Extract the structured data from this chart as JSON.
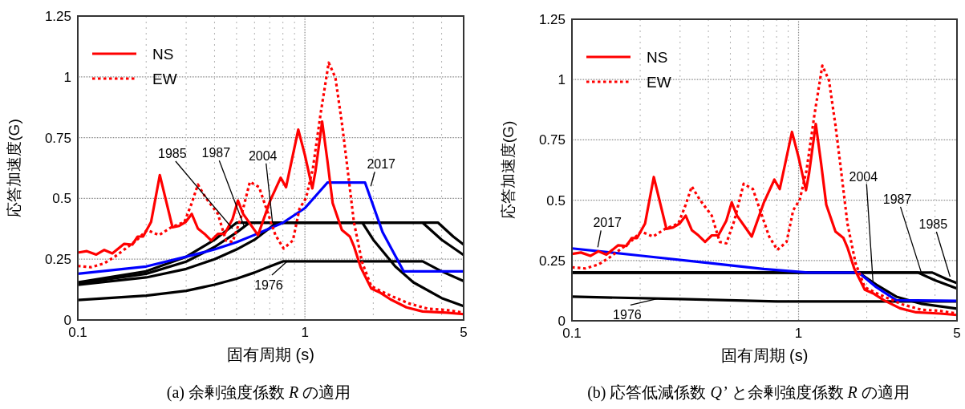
{
  "chart_data": [
    {
      "type": "line",
      "title": "(a)  余剰強度係数 *R* の適用",
      "xlabel": "固有周期 (s)",
      "ylabel": "応答加速度(G)",
      "log": "x",
      "xlim": [
        0.1,
        5
      ],
      "ylim": [
        0,
        1.25
      ],
      "xticks": [
        0.1,
        1,
        5
      ],
      "yticks": [
        0,
        0.25,
        0.5,
        0.75,
        1,
        1.25
      ],
      "grid": true,
      "legend": "top left",
      "series": [
        {
          "name": "NS",
          "color": "#ff0000",
          "line_style": "solid",
          "x": [
            0.1,
            0.1096,
            0.1206,
            0.1308,
            0.1419,
            0.16,
            0.1738,
            0.1835,
            0.1938,
            0.2102,
            0.2297,
            0.2612,
            0.2794,
            0.2986,
            0.3176,
            0.3379,
            0.3616,
            0.3868,
            0.414,
            0.4428,
            0.48,
            0.507,
            0.535,
            0.6215,
            0.7035,
            0.782,
            0.826,
            0.935,
            1.0,
            1.078,
            1.113,
            1.191,
            1.256,
            1.325,
            1.455,
            1.578,
            1.643,
            1.76,
            1.96,
            2.15,
            2.38,
            2.8,
            3.3,
            4.21,
            5
          ],
          "values": [
            0.277,
            0.283,
            0.269,
            0.288,
            0.274,
            0.313,
            0.31,
            0.343,
            0.343,
            0.403,
            0.596,
            0.381,
            0.387,
            0.403,
            0.436,
            0.376,
            0.354,
            0.327,
            0.354,
            0.354,
            0.415,
            0.491,
            0.436,
            0.349,
            0.491,
            0.585,
            0.546,
            0.783,
            0.678,
            0.541,
            0.612,
            0.816,
            0.656,
            0.481,
            0.37,
            0.343,
            0.304,
            0.217,
            0.129,
            0.112,
            0.085,
            0.052,
            0.035,
            0.03,
            0.024
          ]
        },
        {
          "name": "EW",
          "color": "#ff0000",
          "line_style": "dotted",
          "x": [
            0.1,
            0.1142,
            0.1308,
            0.1458,
            0.1625,
            0.181,
            0.2019,
            0.2279,
            0.2577,
            0.2948,
            0.3176,
            0.3379,
            0.3664,
            0.414,
            0.4488,
            0.48,
            0.5206,
            0.5724,
            0.6287,
            0.6636,
            0.7417,
            0.806,
            0.8853,
            0.947,
            1.012,
            1.084,
            1.175,
            1.273,
            1.362,
            1.455,
            1.535,
            1.643,
            1.785,
            1.96,
            2.18,
            2.44,
            2.87,
            3.48,
            4.21,
            5
          ],
          "values": [
            0.222,
            0.217,
            0.233,
            0.261,
            0.294,
            0.327,
            0.37,
            0.349,
            0.381,
            0.403,
            0.481,
            0.557,
            0.502,
            0.436,
            0.327,
            0.321,
            0.415,
            0.568,
            0.546,
            0.481,
            0.349,
            0.294,
            0.327,
            0.458,
            0.502,
            0.623,
            0.854,
            1.058,
            0.997,
            0.81,
            0.634,
            0.403,
            0.238,
            0.139,
            0.117,
            0.096,
            0.068,
            0.046,
            0.041,
            0.03
          ]
        },
        {
          "color": "#000000",
          "line_style": "solid",
          "x": [
            0.1,
            0.2,
            0.3,
            0.4,
            0.5,
            0.6,
            0.7,
            0.8,
            3.3,
            4,
            5
          ],
          "values": [
            0.082,
            0.1,
            0.12,
            0.145,
            0.17,
            0.195,
            0.22,
            0.241,
            0.241,
            0.2,
            0.16
          ]
        },
        {
          "color": "#000000",
          "line_style": "solid",
          "x": [
            0.1,
            0.2,
            0.3,
            0.4,
            0.5,
            3.86,
            4.5,
            5
          ],
          "values": [
            0.155,
            0.2,
            0.26,
            0.33,
            0.4,
            0.4,
            0.343,
            0.31
          ]
        },
        {
          "color": "#000000",
          "line_style": "solid",
          "x": [
            0.1,
            0.2,
            0.3,
            0.4,
            0.5,
            0.57,
            3.3,
            4,
            5
          ],
          "values": [
            0.15,
            0.19,
            0.24,
            0.3,
            0.36,
            0.4,
            0.4,
            0.33,
            0.267
          ]
        },
        {
          "color": "#000000",
          "line_style": "solid",
          "x": [
            0.1,
            0.2,
            0.3,
            0.4,
            0.5,
            0.6,
            0.75,
            1.79,
            2,
            2.5,
            3,
            4,
            5
          ],
          "values": [
            0.145,
            0.175,
            0.21,
            0.25,
            0.29,
            0.33,
            0.4,
            0.4,
            0.33,
            0.22,
            0.155,
            0.09,
            0.057
          ]
        },
        {
          "color": "#0000ff",
          "line_style": "solid",
          "x": [
            0.1,
            0.2,
            0.3,
            0.4,
            0.5,
            0.6,
            0.8,
            1,
            1.256,
            1.84,
            2.2,
            2.72,
            5
          ],
          "values": [
            0.19,
            0.22,
            0.26,
            0.29,
            0.32,
            0.35,
            0.4,
            0.46,
            0.565,
            0.565,
            0.36,
            0.2,
            0.2
          ]
        }
      ],
      "annotations": [
        {
          "text": "1985",
          "x": 0.48,
          "y": 0.376
        },
        {
          "text": "1987",
          "x": 0.54,
          "y": 0.385
        },
        {
          "text": "2004",
          "x": 0.72,
          "y": 0.4
        },
        {
          "text": "2017",
          "x": 1.95,
          "y": 0.55
        },
        {
          "text": "1976",
          "x": 0.835,
          "y": 0.241
        }
      ]
    },
    {
      "type": "line",
      "title": "(b)  応答低減係数 *Q’* と余剰強度係数 *R* の適用",
      "xlabel": "固有周期 (s)",
      "ylabel": "応答加速度(G)",
      "log": "x",
      "xlim": [
        0.1,
        5
      ],
      "ylim": [
        0,
        1.25
      ],
      "xticks": [
        0.1,
        1,
        5
      ],
      "yticks": [
        0,
        0.25,
        0.5,
        0.75,
        1,
        1.25
      ],
      "grid": true,
      "legend": "top left",
      "series": [
        {
          "name": "NS",
          "color": "#ff0000",
          "line_style": "solid",
          "x": [
            0.1,
            0.1096,
            0.1206,
            0.1308,
            0.1419,
            0.16,
            0.1738,
            0.1835,
            0.1938,
            0.2102,
            0.2297,
            0.2612,
            0.2794,
            0.2986,
            0.3176,
            0.3379,
            0.3616,
            0.3868,
            0.414,
            0.4428,
            0.48,
            0.507,
            0.535,
            0.6215,
            0.7035,
            0.782,
            0.826,
            0.935,
            1.0,
            1.078,
            1.113,
            1.191,
            1.256,
            1.325,
            1.455,
            1.578,
            1.643,
            1.76,
            1.96,
            2.15,
            2.38,
            2.8,
            3.3,
            4.21,
            5
          ],
          "values": [
            0.277,
            0.283,
            0.269,
            0.288,
            0.274,
            0.313,
            0.31,
            0.343,
            0.343,
            0.403,
            0.596,
            0.381,
            0.387,
            0.403,
            0.436,
            0.376,
            0.354,
            0.327,
            0.354,
            0.354,
            0.415,
            0.491,
            0.436,
            0.349,
            0.491,
            0.585,
            0.546,
            0.783,
            0.678,
            0.541,
            0.612,
            0.816,
            0.656,
            0.481,
            0.37,
            0.343,
            0.304,
            0.217,
            0.129,
            0.112,
            0.085,
            0.052,
            0.035,
            0.03,
            0.024
          ]
        },
        {
          "name": "EW",
          "color": "#ff0000",
          "line_style": "dotted",
          "x": [
            0.1,
            0.1142,
            0.1308,
            0.1458,
            0.1625,
            0.181,
            0.2019,
            0.2279,
            0.2577,
            0.2948,
            0.3176,
            0.3379,
            0.3664,
            0.414,
            0.4488,
            0.48,
            0.5206,
            0.5724,
            0.6287,
            0.6636,
            0.7417,
            0.806,
            0.8853,
            0.947,
            1.012,
            1.084,
            1.175,
            1.273,
            1.362,
            1.455,
            1.535,
            1.643,
            1.785,
            1.96,
            2.18,
            2.44,
            2.87,
            3.48,
            4.21,
            5
          ],
          "values": [
            0.222,
            0.217,
            0.233,
            0.261,
            0.294,
            0.327,
            0.37,
            0.349,
            0.381,
            0.403,
            0.481,
            0.557,
            0.502,
            0.436,
            0.327,
            0.321,
            0.415,
            0.568,
            0.546,
            0.481,
            0.349,
            0.294,
            0.327,
            0.458,
            0.502,
            0.623,
            0.854,
            1.058,
            0.997,
            0.81,
            0.634,
            0.403,
            0.238,
            0.139,
            0.117,
            0.096,
            0.068,
            0.046,
            0.041,
            0.03
          ]
        },
        {
          "color": "#000000",
          "line_style": "solid",
          "x": [
            0.1,
            0.3,
            0.8,
            5
          ],
          "values": [
            0.1,
            0.09,
            0.08,
            0.08
          ]
        },
        {
          "color": "#000000",
          "line_style": "solid",
          "x": [
            0.1,
            3.89,
            4.5,
            5
          ],
          "values": [
            0.2,
            0.2,
            0.173,
            0.156
          ]
        },
        {
          "color": "#000000",
          "line_style": "solid",
          "x": [
            0.1,
            3.36,
            4,
            5
          ],
          "values": [
            0.2,
            0.2,
            0.168,
            0.134
          ]
        },
        {
          "color": "#000000",
          "line_style": "solid",
          "x": [
            0.1,
            1.84,
            2.2,
            2.7,
            3.5,
            5
          ],
          "values": [
            0.2,
            0.2,
            0.15,
            0.1,
            0.07,
            0.05
          ]
        },
        {
          "color": "#0000ff",
          "line_style": "solid",
          "x": [
            0.1,
            0.2,
            0.4,
            0.7,
            1.1,
            1.84,
            2.2,
            2.7,
            5
          ],
          "values": [
            0.3,
            0.27,
            0.24,
            0.215,
            0.2,
            0.2,
            0.14,
            0.085,
            0.083
          ]
        }
      ],
      "annotations": [
        {
          "text": "2017",
          "x": 0.13,
          "y": 0.305
        },
        {
          "text": "1976",
          "x": 0.239,
          "y": 0.092
        },
        {
          "text": "2004",
          "x": 2.13,
          "y": 0.161
        },
        {
          "text": "1987",
          "x": 3.48,
          "y": 0.2
        },
        {
          "text": "1985",
          "x": 4.66,
          "y": 0.183
        }
      ]
    }
  ]
}
